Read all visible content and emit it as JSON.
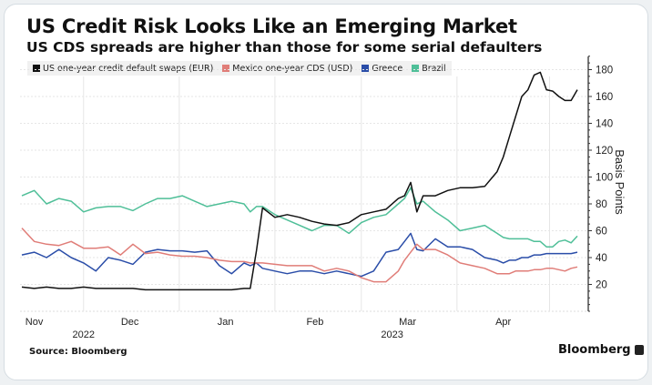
{
  "header": {
    "title": "US Credit Risk Looks Like an Emerging Market",
    "subtitle": "US CDS spreads are higher than those for some serial defaulters"
  },
  "footer": {
    "source": "Source: Bloomberg",
    "brand": "Bloomberg"
  },
  "chart_data": {
    "type": "line",
    "title": "US Credit Risk Looks Like an Emerging Market",
    "subtitle": "US CDS spreads are higher than those for some serial defaulters",
    "xlabel": "",
    "ylabel": "Basis Points",
    "ylim": [
      0,
      190
    ],
    "yticks": [
      20,
      40,
      60,
      80,
      100,
      120,
      140,
      160,
      180
    ],
    "grid": true,
    "legend_position": "top-left",
    "x_unit": "days since 2022-11-01",
    "xlim": [
      10,
      190
    ],
    "month_ticks": [
      {
        "label": "Nov",
        "day": 14
      },
      {
        "label": "Dec",
        "day": 45
      },
      {
        "label": "Jan",
        "day": 76
      },
      {
        "label": "Feb",
        "day": 105
      },
      {
        "label": "Mar",
        "day": 135
      },
      {
        "label": "Apr",
        "day": 166
      }
    ],
    "month_boundaries": [
      30,
      61,
      92,
      120,
      151,
      181
    ],
    "year_labels": [
      {
        "label": "2022",
        "day": 30
      },
      {
        "label": "2023",
        "day": 130
      }
    ],
    "x": [
      10,
      14,
      18,
      22,
      26,
      30,
      34,
      38,
      42,
      46,
      50,
      54,
      58,
      62,
      66,
      70,
      74,
      78,
      82,
      84,
      86,
      88,
      92,
      96,
      100,
      104,
      108,
      112,
      116,
      120,
      124,
      128,
      132,
      134,
      136,
      138,
      140,
      144,
      148,
      152,
      156,
      160,
      164,
      166,
      168,
      170,
      172,
      174,
      176,
      178,
      180,
      182,
      184,
      186,
      188,
      190
    ],
    "series": [
      {
        "name": "US one-year credit default swaps (EUR)",
        "color": "#111111",
        "values": [
          18,
          17,
          18,
          17,
          17,
          18,
          17,
          17,
          17,
          17,
          16,
          16,
          16,
          16,
          16,
          16,
          16,
          16,
          17,
          17,
          45,
          77,
          70,
          72,
          70,
          67,
          65,
          64,
          66,
          72,
          74,
          76,
          84,
          86,
          96,
          74,
          86,
          86,
          90,
          92,
          92,
          93,
          104,
          115,
          130,
          145,
          160,
          165,
          176,
          178,
          165,
          164,
          160,
          157,
          157,
          165
        ]
      },
      {
        "name": "Mexico one-year CDS (USD)",
        "color": "#e07d78",
        "values": [
          62,
          52,
          50,
          49,
          52,
          47,
          47,
          48,
          42,
          50,
          43,
          44,
          42,
          41,
          41,
          40,
          38,
          37,
          37,
          36,
          36,
          36,
          35,
          34,
          34,
          34,
          30,
          32,
          30,
          25,
          22,
          22,
          30,
          38,
          44,
          50,
          46,
          46,
          42,
          36,
          34,
          32,
          28,
          28,
          28,
          30,
          30,
          30,
          31,
          31,
          32,
          32,
          31,
          30,
          32,
          33
        ]
      },
      {
        "name": "Greece",
        "color": "#2a4da8",
        "values": [
          42,
          44,
          40,
          46,
          40,
          36,
          30,
          40,
          38,
          35,
          44,
          46,
          45,
          45,
          44,
          45,
          34,
          28,
          36,
          34,
          36,
          32,
          30,
          28,
          30,
          30,
          28,
          30,
          28,
          26,
          30,
          44,
          46,
          52,
          58,
          46,
          45,
          54,
          48,
          48,
          46,
          40,
          38,
          36,
          38,
          38,
          40,
          40,
          42,
          42,
          43,
          43,
          43,
          43,
          43,
          44
        ]
      },
      {
        "name": "Brazil",
        "color": "#4fbf98",
        "values": [
          86,
          90,
          80,
          84,
          82,
          74,
          77,
          78,
          78,
          75,
          80,
          84,
          84,
          86,
          82,
          78,
          80,
          82,
          80,
          74,
          78,
          78,
          72,
          68,
          64,
          60,
          64,
          64,
          58,
          66,
          70,
          72,
          80,
          84,
          92,
          80,
          82,
          74,
          68,
          60,
          62,
          64,
          58,
          55,
          54,
          54,
          54,
          54,
          52,
          52,
          48,
          48,
          52,
          53,
          51,
          56
        ]
      }
    ]
  }
}
